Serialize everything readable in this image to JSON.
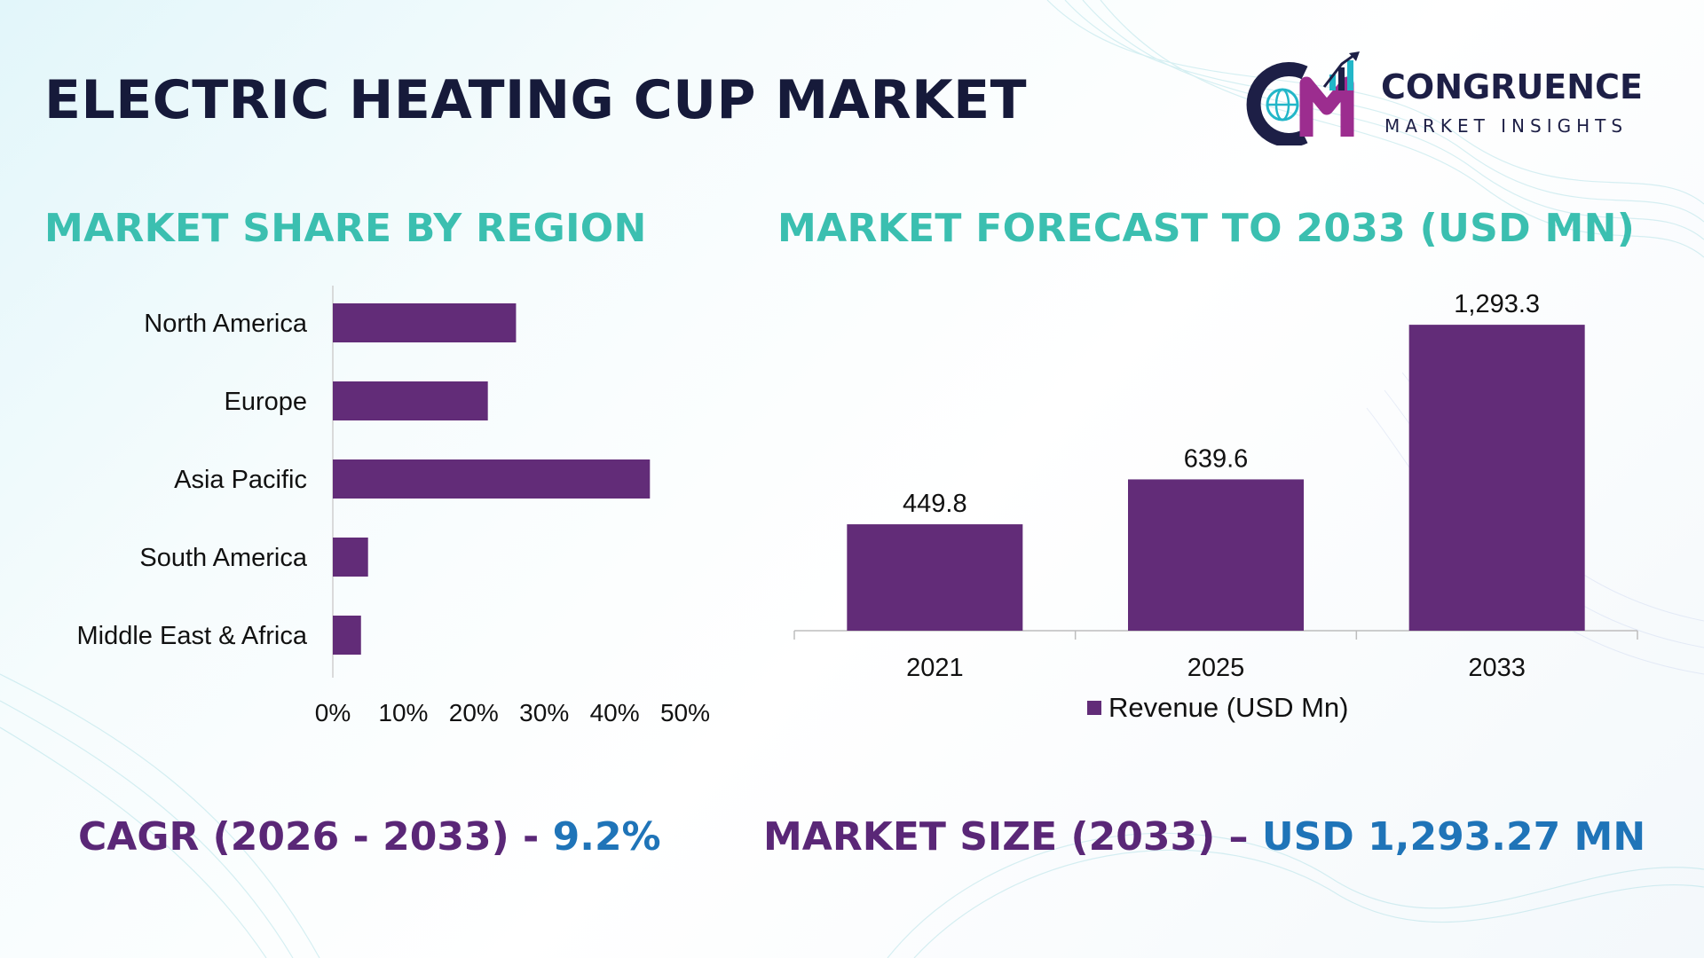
{
  "header": {
    "title": "ELECTRIC HEATING CUP MARKET"
  },
  "logo": {
    "brand": "CONGRUENCE",
    "subtitle": "MARKET INSIGHTS",
    "icon": "cm-globe-growth-icon"
  },
  "colors": {
    "title": "#161a3a",
    "section_title": "#3bbfb0",
    "bar": "#622c78",
    "kpi_label": "#5a2777",
    "kpi_value": "#1f74b8",
    "logo_dark": "#1d1f46",
    "logo_accent": "#22b6c8"
  },
  "sections": {
    "region_title": "MARKET SHARE BY REGION",
    "forecast_title": "MARKET FORECAST TO 2033 (USD MN)"
  },
  "kpis": {
    "cagr_label": "CAGR (2026 - 2033) - ",
    "cagr_value": "9.2%",
    "size_label": "MARKET SIZE (2033) – ",
    "size_value": "USD 1,293.27 MN"
  },
  "chart_data": [
    {
      "type": "bar",
      "orientation": "horizontal",
      "title": "MARKET SHARE BY REGION",
      "categories": [
        "North America",
        "Europe",
        "Asia Pacific",
        "South America",
        "Middle East & Africa"
      ],
      "values": [
        26,
        22,
        45,
        5,
        4
      ],
      "unit": "%",
      "xlim": [
        0,
        50
      ],
      "ticks": [
        "0%",
        "10%",
        "20%",
        "30%",
        "40%",
        "50%"
      ],
      "grid": false
    },
    {
      "type": "bar",
      "title": "MARKET FORECAST TO 2033 (USD MN)",
      "categories": [
        "2021",
        "2025",
        "2033"
      ],
      "series": [
        {
          "name": "Revenue (USD Mn)",
          "values": [
            449.8,
            639.6,
            1293.3
          ],
          "labels": [
            "449.8",
            "639.6",
            "1,293.3"
          ]
        }
      ],
      "ylim": [
        0,
        1350
      ],
      "legend": "bottom",
      "grid": false
    }
  ]
}
